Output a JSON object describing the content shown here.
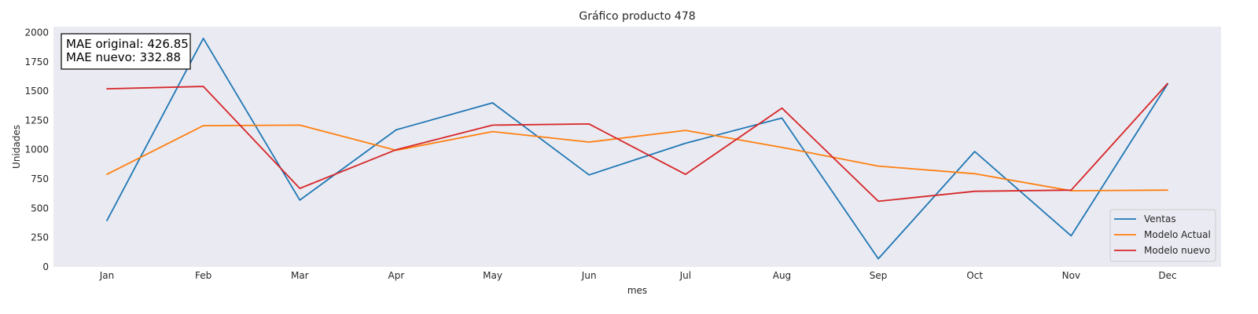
{
  "chart_data": {
    "type": "line",
    "title": "Gráfico producto 478",
    "xlabel": "mes",
    "ylabel": "Unidades",
    "categories": [
      "Jan",
      "Feb",
      "Mar",
      "Apr",
      "May",
      "Jun",
      "Jul",
      "Aug",
      "Sep",
      "Oct",
      "Nov",
      "Dec"
    ],
    "ylim": [
      0,
      2050
    ],
    "yticks": [
      0,
      250,
      500,
      750,
      1000,
      1250,
      1500,
      1750,
      2000
    ],
    "grid": false,
    "legend_position": "bottom-right",
    "series": [
      {
        "name": "Ventas",
        "color": "#1f77b4",
        "values": [
          395,
          1950,
          570,
          1170,
          1400,
          785,
          1055,
          1270,
          70,
          985,
          265,
          1560
        ]
      },
      {
        "name": "Modelo Actual",
        "color": "#ff7f0e",
        "values": [
          790,
          1205,
          1210,
          995,
          1155,
          1065,
          1165,
          1020,
          860,
          795,
          650,
          655
        ]
      },
      {
        "name": "Modelo nuevo",
        "color": "#d62728",
        "values": [
          1520,
          1540,
          670,
          1000,
          1210,
          1220,
          790,
          1355,
          560,
          645,
          655,
          1565
        ]
      }
    ],
    "annotation": [
      "MAE original: 426.85",
      "MAE nuevo: 332.88"
    ]
  },
  "style": {
    "plot_background": "#eaeaf2",
    "page_background": "#ffffff"
  }
}
